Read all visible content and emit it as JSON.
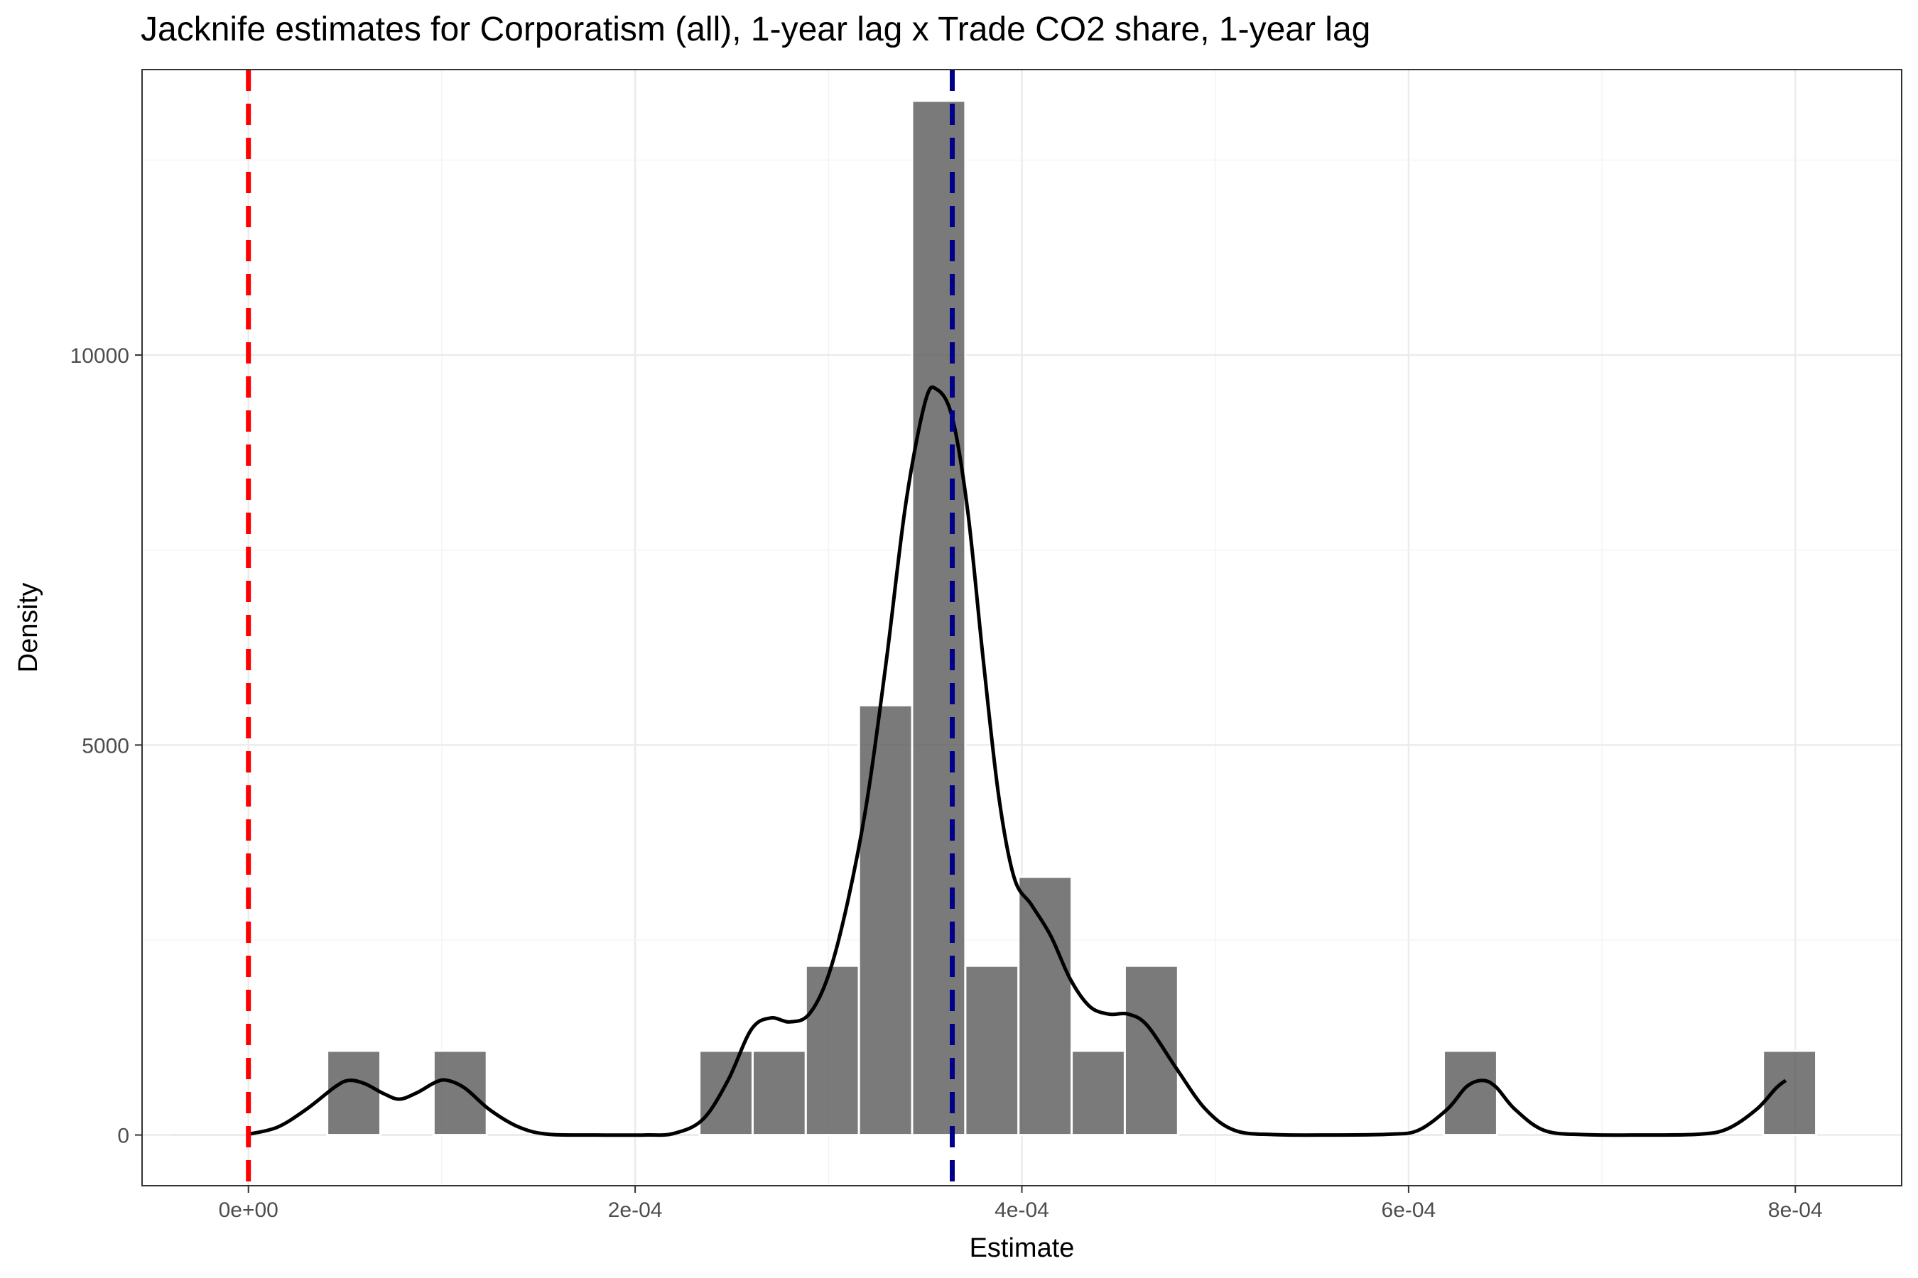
{
  "chart_data": {
    "type": "bar",
    "title": "Jacknife estimates for Corporatism (all), 1-year lag x Trade CO2 share, 1-year lag",
    "xlabel": "Estimate",
    "ylabel": "Density",
    "xlim": [
      -5.5e-05,
      0.000855
    ],
    "ylim": [
      -650,
      13660
    ],
    "x_ticks": [
      0,
      0.0002,
      0.0004,
      0.0006,
      0.0008
    ],
    "x_tick_labels": [
      "0e+00",
      "2e-04",
      "4e-04",
      "6e-04",
      "8e-04"
    ],
    "y_ticks": [
      0,
      5000,
      10000
    ],
    "y_tick_labels": [
      "0",
      "5000",
      "10000"
    ],
    "grid": true,
    "histogram": {
      "bin_width": 2.75e-05,
      "bins": [
        {
          "x": 5.45e-05,
          "density": 1080
        },
        {
          "x": 0.0001095,
          "density": 1080
        },
        {
          "x": 0.000247,
          "density": 1080
        },
        {
          "x": 0.0002745,
          "density": 1080
        },
        {
          "x": 0.000302,
          "density": 2170
        },
        {
          "x": 0.0003295,
          "density": 5510
        },
        {
          "x": 0.000357,
          "density": 13260
        },
        {
          "x": 0.0003845,
          "density": 2170
        },
        {
          "x": 0.000412,
          "density": 3310
        },
        {
          "x": 0.0004395,
          "density": 1080
        },
        {
          "x": 0.000467,
          "density": 2170
        },
        {
          "x": 0.000632,
          "density": 1080
        },
        {
          "x": 0.000797,
          "density": 1080
        }
      ],
      "fill": "#595959"
    },
    "density_curve": {
      "color": "#000000",
      "points": [
        [
          0.0,
          10
        ],
        [
          1.5e-05,
          100
        ],
        [
          3e-05,
          330
        ],
        [
          4.5e-05,
          620
        ],
        [
          5.2e-05,
          700
        ],
        [
          6e-05,
          660
        ],
        [
          7e-05,
          530
        ],
        [
          7.8e-05,
          460
        ],
        [
          8.7e-05,
          540
        ],
        [
          9.7e-05,
          680
        ],
        [
          0.000103,
          700
        ],
        [
          0.000112,
          600
        ],
        [
          0.000125,
          320
        ],
        [
          0.00014,
          100
        ],
        [
          0.000155,
          10
        ],
        [
          0.00018,
          0
        ],
        [
          0.000205,
          0
        ],
        [
          0.00022,
          20
        ],
        [
          0.000235,
          200
        ],
        [
          0.000248,
          700
        ],
        [
          0.00026,
          1350
        ],
        [
          0.00027,
          1500
        ],
        [
          0.00028,
          1450
        ],
        [
          0.00029,
          1550
        ],
        [
          0.0003,
          2050
        ],
        [
          0.00031,
          3000
        ],
        [
          0.00032,
          4300
        ],
        [
          0.00033,
          6100
        ],
        [
          0.00034,
          8100
        ],
        [
          0.00035,
          9400
        ],
        [
          0.000356,
          9560
        ],
        [
          0.000364,
          9200
        ],
        [
          0.000372,
          8000
        ],
        [
          0.00038,
          6100
        ],
        [
          0.000388,
          4350
        ],
        [
          0.000396,
          3300
        ],
        [
          0.000405,
          2950
        ],
        [
          0.000415,
          2550
        ],
        [
          0.000425,
          2000
        ],
        [
          0.000435,
          1650
        ],
        [
          0.000445,
          1550
        ],
        [
          0.000455,
          1550
        ],
        [
          0.000465,
          1400
        ],
        [
          0.00048,
          850
        ],
        [
          0.000495,
          330
        ],
        [
          0.00051,
          60
        ],
        [
          0.00053,
          5
        ],
        [
          0.00056,
          0
        ],
        [
          0.00059,
          10
        ],
        [
          0.000605,
          60
        ],
        [
          0.00062,
          330
        ],
        [
          0.00063,
          620
        ],
        [
          0.000638,
          700
        ],
        [
          0.000645,
          620
        ],
        [
          0.000655,
          330
        ],
        [
          0.00067,
          60
        ],
        [
          0.00069,
          5
        ],
        [
          0.00072,
          0
        ],
        [
          0.00075,
          10
        ],
        [
          0.000765,
          80
        ],
        [
          0.00078,
          330
        ],
        [
          0.00079,
          600
        ],
        [
          0.000795,
          700
        ]
      ]
    },
    "reference_lines": [
      {
        "x": 0.0,
        "color": "#ff0000",
        "style": "dashed"
      },
      {
        "x": 0.000364,
        "color": "#00008b",
        "style": "dashed"
      }
    ]
  }
}
